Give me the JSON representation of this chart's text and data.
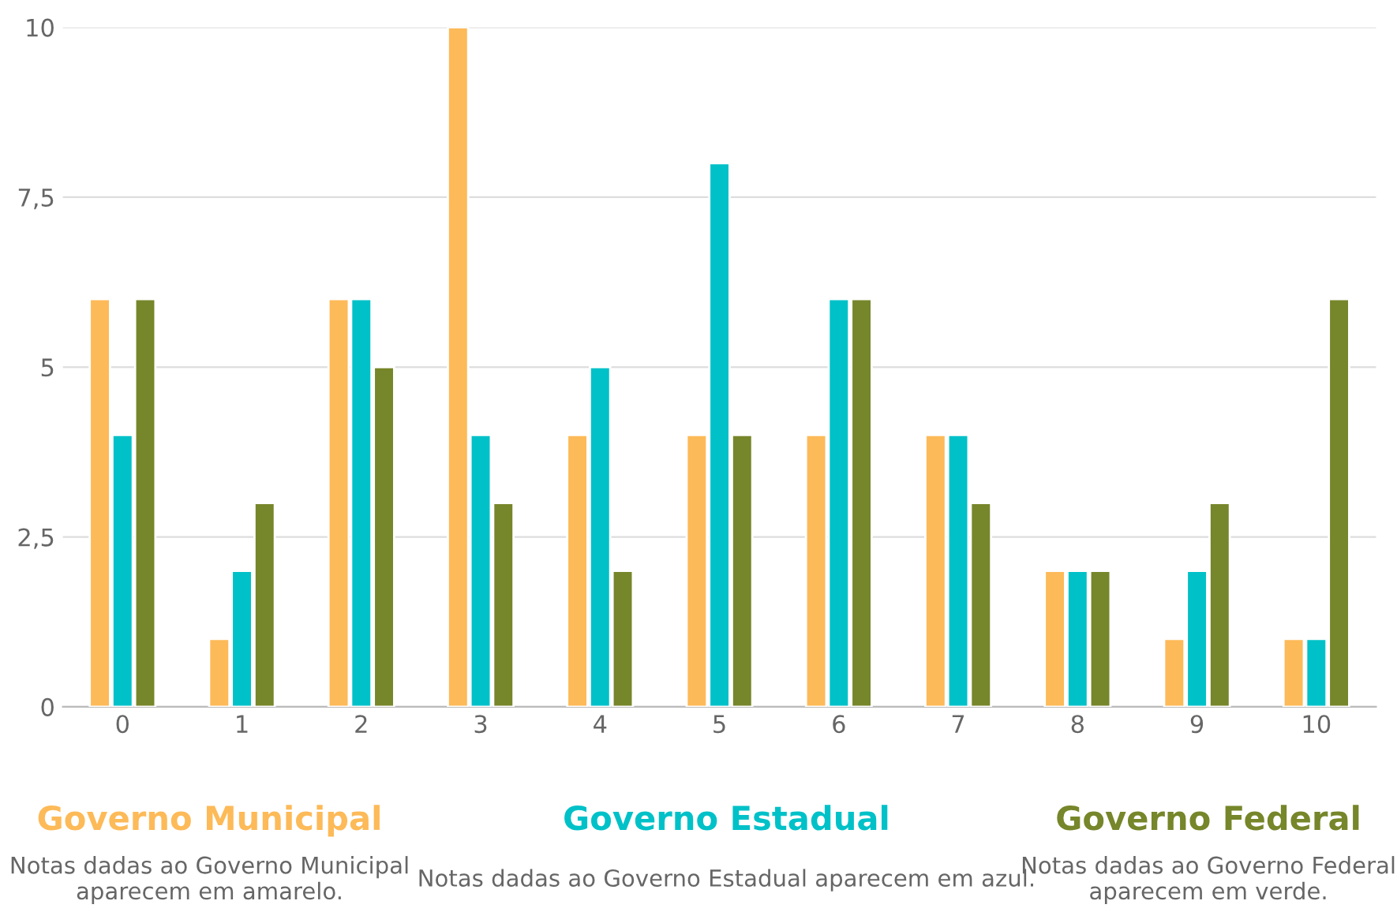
{
  "chart_data": {
    "type": "bar",
    "categories": [
      "0",
      "1",
      "2",
      "3",
      "4",
      "5",
      "6",
      "7",
      "8",
      "9",
      "10"
    ],
    "series": [
      {
        "name": "Governo Municipal",
        "color": "#fdba58",
        "values": [
          6,
          1,
          6,
          10,
          4,
          4,
          4,
          4,
          2,
          1,
          1
        ]
      },
      {
        "name": "Governo Estadual",
        "color": "#00c1c8",
        "values": [
          4,
          2,
          6,
          4,
          5,
          8,
          6,
          4,
          2,
          2,
          1
        ]
      },
      {
        "name": "Governo Federal",
        "color": "#76862a",
        "values": [
          6,
          3,
          5,
          3,
          2,
          4,
          6,
          3,
          2,
          3,
          6
        ]
      }
    ],
    "ylim": [
      0,
      10
    ],
    "yticks": [
      0,
      {
        "value": 2.5,
        "label": "2,5"
      },
      5,
      {
        "value": 7.5,
        "label": "7,5"
      },
      10
    ],
    "grid": "y",
    "legend": "bottom",
    "annotations": [
      "Notas dadas ao Governo Municipal aparecem em amarelo.",
      "Notas dadas ao Governo Estadual aparecem em azul.",
      "Notas dadas ao Governo Federal aparecem em verde."
    ]
  }
}
